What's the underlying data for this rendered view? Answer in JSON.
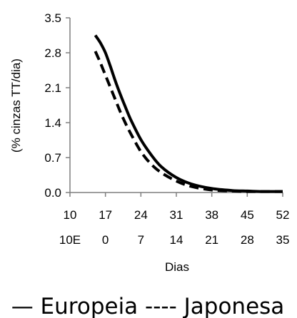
{
  "chart_data": {
    "type": "line",
    "ylabel": "(% cinzas TT/dia)",
    "xlabel": "Dias",
    "ylim": [
      0,
      3.5
    ],
    "xlim": [
      10,
      52
    ],
    "yticks": [
      "0.0",
      "0.7",
      "1.4",
      "2.1",
      "2.8",
      "3.5"
    ],
    "xticks_row1": [
      "10",
      "17",
      "24",
      "31",
      "38",
      "45",
      "52"
    ],
    "xticks_row2": [
      "10E",
      "0",
      "7",
      "14",
      "21",
      "28",
      "35"
    ],
    "legend_text": "— Europeia ---- Japonesa",
    "legend_position": "bottom",
    "grid": false,
    "series": [
      {
        "name": "Europeia",
        "style": "solid",
        "x": [
          15,
          16,
          17,
          18,
          19,
          20,
          21,
          22,
          24,
          26,
          28,
          31,
          34,
          38,
          42,
          45,
          48,
          52
        ],
        "y": [
          3.15,
          3.0,
          2.8,
          2.52,
          2.22,
          1.95,
          1.7,
          1.46,
          1.06,
          0.76,
          0.52,
          0.3,
          0.17,
          0.08,
          0.04,
          0.03,
          0.02,
          0.02
        ]
      },
      {
        "name": "Japonesa",
        "style": "dashed",
        "x": [
          15,
          16,
          17,
          18,
          19,
          20,
          21,
          22,
          24,
          26,
          28,
          31,
          34,
          38,
          42,
          45,
          48,
          52
        ],
        "y": [
          2.83,
          2.6,
          2.35,
          2.1,
          1.85,
          1.6,
          1.38,
          1.18,
          0.82,
          0.57,
          0.4,
          0.23,
          0.12,
          0.05,
          0.03,
          0.02,
          0.02,
          0.02
        ]
      }
    ],
    "colors": {
      "line": "#000000",
      "axis": "#7f7f7f"
    }
  }
}
